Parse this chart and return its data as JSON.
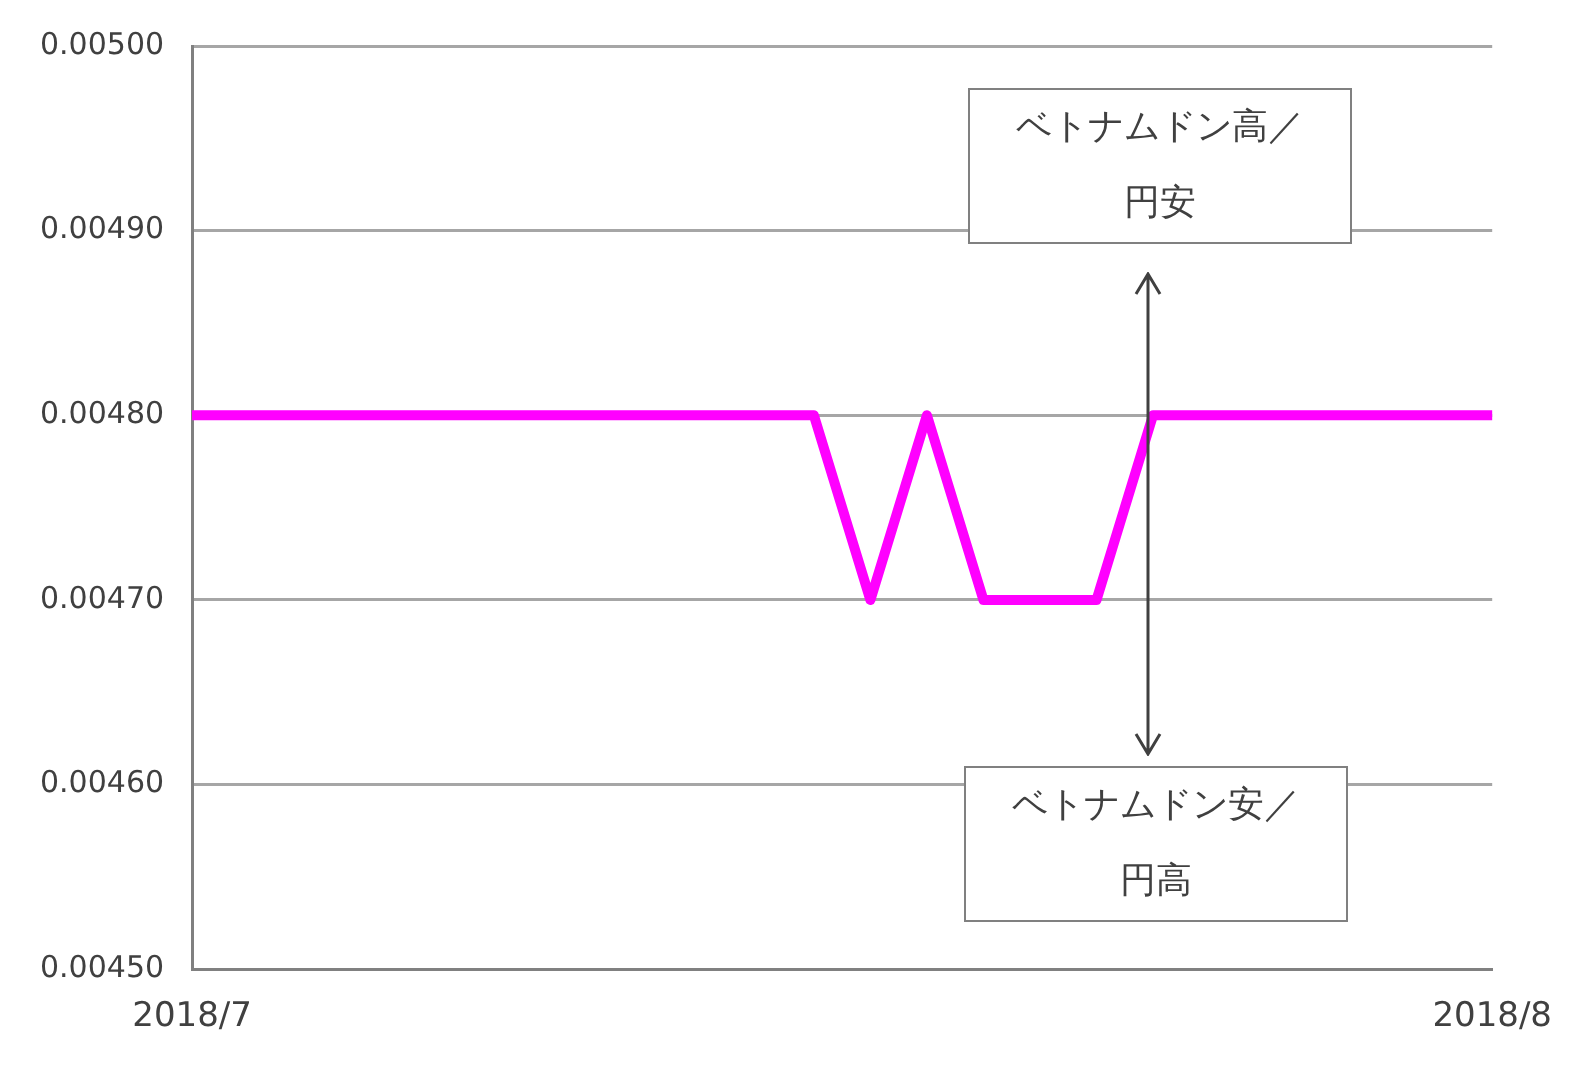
{
  "chart_data": {
    "type": "line",
    "categories": [
      "2018/7",
      null,
      null,
      null,
      null,
      null,
      null,
      null,
      null,
      null,
      null,
      null,
      null,
      null,
      null,
      null,
      null,
      null,
      null,
      null,
      null,
      null,
      null,
      "2018/8"
    ],
    "series": [
      {
        "color": "#ff00ff",
        "values": [
          0.0048,
          0.0048,
          0.0048,
          0.0048,
          0.0048,
          0.0048,
          0.0048,
          0.0048,
          0.0048,
          0.0048,
          0.0048,
          0.0048,
          0.0047,
          0.0048,
          0.0047,
          0.0047,
          0.0047,
          0.0048,
          0.0048,
          0.0048,
          0.0048,
          0.0048,
          0.0048,
          0.0048
        ]
      }
    ],
    "ylim": [
      0.0045,
      0.005
    ],
    "yticks": [
      {
        "value": 0.0045,
        "label": "0.00450"
      },
      {
        "value": 0.0046,
        "label": "0.00460"
      },
      {
        "value": 0.0047,
        "label": "0.00470"
      },
      {
        "value": 0.0048,
        "label": "0.00480"
      },
      {
        "value": 0.0049,
        "label": "0.00490"
      },
      {
        "value": 0.005,
        "label": "0.00500"
      }
    ],
    "grid": "y",
    "legend": false,
    "marker": "none",
    "annotations": [
      "ベトナムドン高／円安",
      "ベトナムドン安／円高"
    ]
  }
}
